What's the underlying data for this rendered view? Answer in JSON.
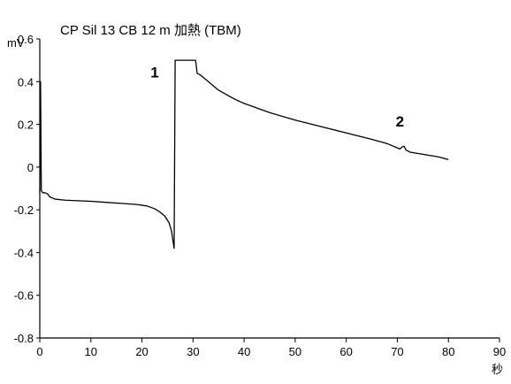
{
  "chart_data": {
    "type": "line",
    "title": "CP Sil 13 CB 12 m 加熱 (TBM)",
    "ylabel": "mV",
    "xlabel": "秒",
    "xlim": [
      0,
      90
    ],
    "ylim": [
      -0.8,
      0.6
    ],
    "x_ticks": [
      "0",
      "10",
      "20",
      "30",
      "40",
      "50",
      "60",
      "70",
      "80",
      "90"
    ],
    "y_ticks": [
      "0.6",
      "0.4",
      "0.2",
      "0",
      "-0.2",
      "-0.4",
      "-0.6",
      "-0.8"
    ],
    "grid": false,
    "series": [
      {
        "values": [
          [
            0.0,
            -0.12
          ],
          [
            0.15,
            0.4
          ],
          [
            0.3,
            -0.11
          ],
          [
            0.6,
            -0.12
          ],
          [
            1.0,
            -0.12
          ],
          [
            1.5,
            -0.125
          ],
          [
            2.0,
            -0.14
          ],
          [
            3.0,
            -0.15
          ],
          [
            5.0,
            -0.155
          ],
          [
            8.0,
            -0.158
          ],
          [
            10.0,
            -0.16
          ],
          [
            13.0,
            -0.165
          ],
          [
            16.0,
            -0.17
          ],
          [
            19.0,
            -0.175
          ],
          [
            21.0,
            -0.182
          ],
          [
            22.5,
            -0.195
          ],
          [
            23.5,
            -0.21
          ],
          [
            24.5,
            -0.23
          ],
          [
            25.3,
            -0.26
          ],
          [
            25.8,
            -0.3
          ],
          [
            26.1,
            -0.35
          ],
          [
            26.3,
            -0.38
          ],
          [
            26.5,
            0.5
          ],
          [
            30.5,
            0.5
          ],
          [
            30.8,
            0.44
          ],
          [
            31.5,
            0.43
          ],
          [
            33.0,
            0.4
          ],
          [
            35.0,
            0.36
          ],
          [
            38.0,
            0.32
          ],
          [
            40.0,
            0.298
          ],
          [
            45.0,
            0.255
          ],
          [
            50.0,
            0.22
          ],
          [
            55.0,
            0.19
          ],
          [
            60.0,
            0.16
          ],
          [
            65.0,
            0.13
          ],
          [
            68.0,
            0.11
          ],
          [
            70.0,
            0.09
          ],
          [
            70.5,
            0.085
          ],
          [
            71.0,
            0.095
          ],
          [
            71.3,
            0.098
          ],
          [
            71.7,
            0.08
          ],
          [
            72.5,
            0.07
          ],
          [
            75.0,
            0.06
          ],
          [
            78.0,
            0.048
          ],
          [
            80.0,
            0.035
          ]
        ]
      }
    ],
    "annotations": [
      {
        "text": "1",
        "x": 22.5,
        "y": 0.42
      },
      {
        "text": "2",
        "x": 70.5,
        "y": 0.19
      }
    ]
  }
}
